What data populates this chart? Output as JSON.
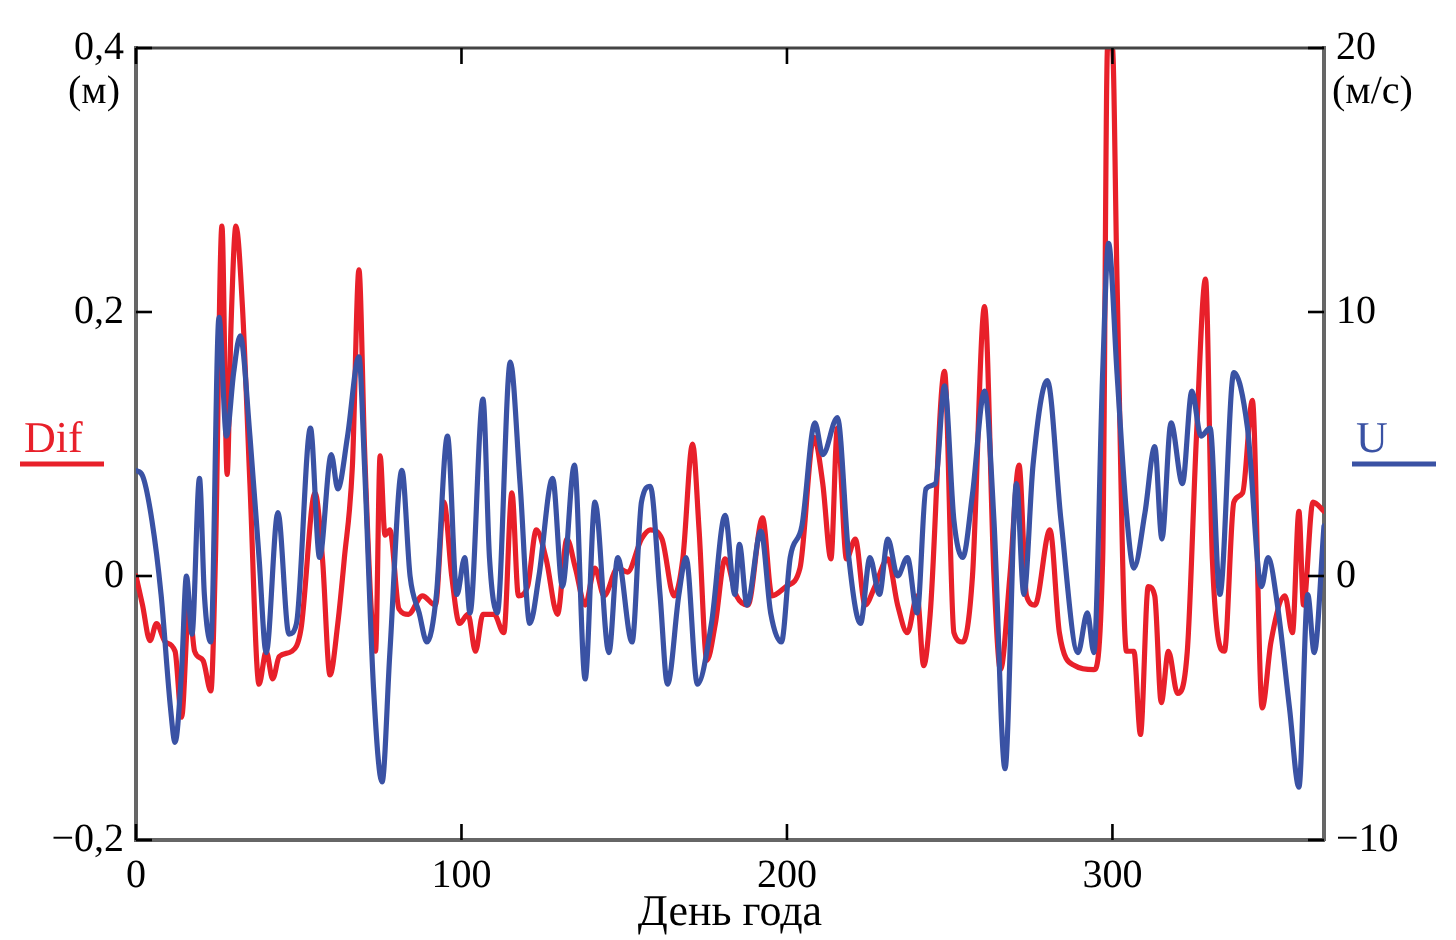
{
  "chart_data": {
    "type": "line",
    "xlabel": "День года",
    "ylabel": "(м)",
    "y2label": "(м/с)",
    "xlim": [
      0,
      365
    ],
    "xticks": [
      0,
      100,
      200,
      300
    ],
    "ylim": [
      -0.2,
      0.4
    ],
    "yticks": [
      {
        "value": -0.2,
        "label": "−0,2"
      },
      {
        "value": 0,
        "label": "0"
      },
      {
        "value": 0.2,
        "label": "0,2"
      },
      {
        "value": 0.4,
        "label": "0,4"
      }
    ],
    "y2lim": [
      -10,
      20
    ],
    "y2ticks": [
      {
        "value": -10,
        "label": "−10"
      },
      0,
      10,
      20
    ],
    "grid": false,
    "marker": "none",
    "line_style": "solid",
    "series": [
      {
        "name": "Dif",
        "color": "#e8202a",
        "axis": "y",
        "x": [
          0,
          2,
          4.3,
          6.3,
          9,
          12,
          14,
          16.3,
          18,
          20.6,
          23,
          24.4,
          26.4,
          28,
          29.2,
          30.7,
          32.7,
          35,
          37.8,
          40,
          42,
          44,
          47.9,
          50.7,
          55,
          57.3,
          59.6,
          62,
          64,
          66.5,
          68.5,
          70.2,
          72.2,
          73.6,
          75,
          76.5,
          78,
          80.8,
          83.7,
          88,
          92,
          94.6,
          97,
          99.4,
          102,
          104.3,
          106.6,
          110,
          113,
          115.5,
          117.5,
          120.3,
          123,
          126,
          129.5,
          132.4,
          135,
          138,
          141,
          143.8,
          148,
          151,
          155.3,
          158,
          161.6,
          165.3,
          168,
          171,
          173,
          175.4,
          178,
          181,
          184.5,
          188,
          192.5,
          195.4,
          199.7,
          204,
          208.3,
          211,
          213.5,
          215.5,
          218.3,
          221,
          224,
          227,
          231,
          234,
          237,
          240,
          242,
          244,
          248.4,
          251.3,
          254,
          257,
          260.7,
          263.6,
          265.6,
          268.5,
          271.3,
          273.6,
          276.2,
          280.8,
          283.7,
          288.5,
          294.3,
          297,
          298.5,
          300,
          301.4,
          304.3,
          306.6,
          308.6,
          311,
          313,
          315,
          317.2,
          320,
          323,
          325.8,
          328.6,
          330.7,
          334.4,
          337.3,
          340,
          343,
          346,
          348.7,
          353,
          355.3,
          357.3,
          358.7,
          361.6,
          365
        ],
        "values": [
          0,
          -0.022,
          -0.049,
          -0.036,
          -0.05,
          -0.057,
          -0.107,
          -0.022,
          -0.057,
          -0.064,
          -0.087,
          0.013,
          0.265,
          0.077,
          0.19,
          0.265,
          0.204,
          0.07,
          -0.082,
          -0.057,
          -0.078,
          -0.061,
          -0.057,
          -0.04,
          0.063,
          0.013,
          -0.075,
          -0.036,
          0.013,
          0.084,
          0.232,
          0.098,
          -0.022,
          -0.057,
          0.091,
          0.031,
          0.035,
          -0.025,
          -0.029,
          -0.015,
          -0.022,
          0.056,
          0,
          -0.036,
          -0.029,
          -0.057,
          -0.029,
          -0.029,
          -0.043,
          0.063,
          -0.015,
          -0.008,
          0.035,
          0.013,
          -0.029,
          0.028,
          0.006,
          -0.022,
          0.006,
          -0.015,
          0.006,
          0.003,
          0.028,
          0.035,
          0.028,
          -0.015,
          0.013,
          0.1,
          0.035,
          -0.064,
          -0.036,
          0.013,
          -0.015,
          -0.022,
          0.044,
          -0.015,
          -0.008,
          0.006,
          0.105,
          0.07,
          0.013,
          0.112,
          0.013,
          0.028,
          -0.022,
          -0.008,
          0.013,
          -0.022,
          -0.043,
          -0.015,
          -0.068,
          -0.029,
          0.155,
          -0.043,
          -0.05,
          0,
          0.204,
          0,
          -0.071,
          0,
          0.084,
          -0.015,
          -0.022,
          0.035,
          -0.043,
          -0.068,
          -0.071,
          0.013,
          0.4,
          0.4,
          0.225,
          -0.057,
          -0.057,
          -0.12,
          -0.008,
          -0.015,
          -0.096,
          -0.057,
          -0.089,
          -0.057,
          0.105,
          0.225,
          0.013,
          -0.057,
          0.056,
          0.063,
          0.133,
          -0.1,
          -0.05,
          -0.015,
          -0.043,
          0.049,
          -0.022,
          0.056,
          0.049
        ]
      },
      {
        "name": "U",
        "color": "#3a52a4",
        "axis": "y2",
        "x": [
          0,
          2,
          4.9,
          7.7,
          10.6,
          12,
          14,
          15.5,
          17.2,
          19.5,
          21,
          23,
          25.5,
          27.8,
          30,
          32,
          35,
          37.8,
          40,
          43.6,
          47,
          49.3,
          53.6,
          56.4,
          60,
          62,
          65,
          68.5,
          70.2,
          73,
          75.6,
          78,
          81.7,
          84.2,
          87,
          89.4,
          92.3,
          95.7,
          98.6,
          101,
          102.6,
          106.6,
          108.6,
          111,
          115,
          118,
          121,
          123.8,
          128,
          131,
          134.7,
          138,
          141,
          145.3,
          148,
          152.4,
          155.3,
          158,
          161,
          163.3,
          166.8,
          169,
          172.5,
          176.8,
          181,
          184,
          185.4,
          187.7,
          192,
          195,
          198.3,
          201,
          204.6,
          208.6,
          211,
          215.5,
          219,
          222.6,
          225.5,
          228.4,
          231,
          234,
          237,
          240,
          242.7,
          245.6,
          248.4,
          251.3,
          254,
          257,
          260.7,
          263.6,
          267,
          270.5,
          272.8,
          275.6,
          280,
          284.2,
          289.4,
          292.3,
          294.3,
          297,
          298.8,
          301.4,
          304.3,
          306.6,
          310,
          313,
          315.2,
          318,
          321.5,
          324.4,
          327.2,
          330,
          333,
          337.3,
          341.5,
          345.8,
          347.8,
          350.7,
          354.4,
          357.3,
          360,
          362,
          365
        ],
        "values": [
          4,
          3.8,
          2.1,
          -0.7,
          -5,
          -6.3,
          -3.6,
          0,
          -2.2,
          3.7,
          -0.7,
          -2.5,
          9.8,
          5.3,
          7.7,
          9.1,
          5.3,
          0.7,
          -2.9,
          2.4,
          -2.2,
          -1.8,
          5.6,
          0.7,
          4.6,
          3.3,
          5.3,
          8.3,
          4.2,
          -4.3,
          -7.8,
          -2.9,
          4,
          0,
          -1.4,
          -2.5,
          -0.7,
          5.3,
          -0.7,
          0.7,
          -1.4,
          6.7,
          0.7,
          -1.4,
          8.1,
          3.5,
          -1.8,
          0,
          3.7,
          -0.4,
          4.2,
          -3.9,
          2.8,
          -2.9,
          0.7,
          -2.5,
          2.8,
          3.4,
          -0.7,
          -4.1,
          -0.7,
          0.7,
          -4.1,
          -1.8,
          2.3,
          -0.7,
          1.2,
          -1.1,
          1.7,
          -1.4,
          -2.5,
          0.7,
          1.9,
          5.8,
          4.6,
          6,
          0.7,
          -1.8,
          0.7,
          -0.7,
          1.4,
          0,
          0.7,
          -1.4,
          3.3,
          3.5,
          7.2,
          2.1,
          0.7,
          3.1,
          7,
          2.1,
          -7.3,
          3.5,
          -0.7,
          4.2,
          7.4,
          2.1,
          -2.9,
          -1.4,
          -2.9,
          7.7,
          12.6,
          7.7,
          2.4,
          0.3,
          2.4,
          4.9,
          1.4,
          5.8,
          3.5,
          7,
          5.3,
          5.6,
          -0.7,
          7.7,
          5.6,
          -0.4,
          0.7,
          -1.1,
          -5,
          -8,
          -0.7,
          -2.9,
          1.9
        ]
      }
    ]
  }
}
